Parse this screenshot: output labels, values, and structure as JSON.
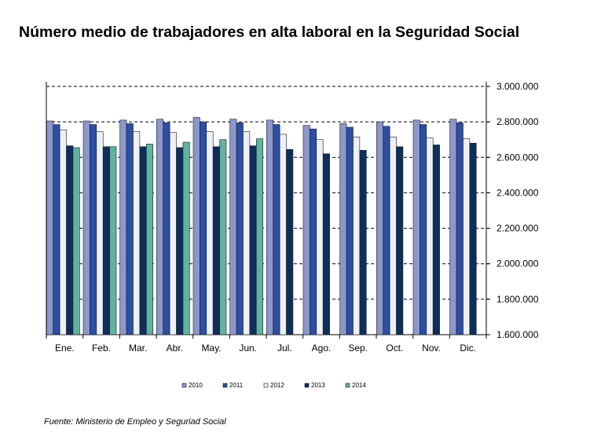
{
  "title": "Número medio de trabajadores en alta laboral en la Seguridad Social",
  "source": "Fuente: Ministerio de Empleo y Seguriad Social",
  "colors": {
    "2010": "#8c97cc",
    "2011": "#2c4fa3",
    "2012": "#eef0f6",
    "2013": "#0e2f5c",
    "2014": "#5fb3a0"
  },
  "chart_data": {
    "type": "bar",
    "categories": [
      "Ene.",
      "Feb.",
      "Mar.",
      "Abr.",
      "May.",
      "Jun.",
      "Jul.",
      "Ago.",
      "Sep.",
      "Oct.",
      "Nov.",
      "Dic."
    ],
    "series": [
      {
        "name": "2010",
        "values": [
          2805000,
          2805000,
          2810000,
          2815000,
          2825000,
          2815000,
          2810000,
          2780000,
          2790000,
          2800000,
          2810000,
          2815000
        ]
      },
      {
        "name": "2011",
        "values": [
          2785000,
          2785000,
          2790000,
          2795000,
          2800000,
          2795000,
          2785000,
          2760000,
          2770000,
          2775000,
          2785000,
          2795000
        ]
      },
      {
        "name": "2012",
        "values": [
          2755000,
          2745000,
          2745000,
          2740000,
          2745000,
          2745000,
          2730000,
          2700000,
          2715000,
          2715000,
          2710000,
          2705000
        ]
      },
      {
        "name": "2013",
        "values": [
          2665000,
          2660000,
          2660000,
          2655000,
          2660000,
          2665000,
          2645000,
          2620000,
          2640000,
          2660000,
          2670000,
          2680000
        ]
      },
      {
        "name": "2014",
        "values": [
          2655000,
          2660000,
          2675000,
          2685000,
          2700000,
          2705000,
          null,
          null,
          null,
          null,
          null,
          null
        ]
      }
    ],
    "ylim": [
      1600000,
      3000000
    ],
    "yticks": [
      1600000,
      1800000,
      2000000,
      2200000,
      2400000,
      2600000,
      2800000,
      3000000
    ],
    "ytick_labels": [
      "1.600.000",
      "1.800.000",
      "2.000.000",
      "2.200.000",
      "2.400.000",
      "2.600.000",
      "2.800.000",
      "3.000.000"
    ],
    "y_axis_position": "right",
    "grid": "dashed horizontal",
    "legend": "bottom"
  }
}
